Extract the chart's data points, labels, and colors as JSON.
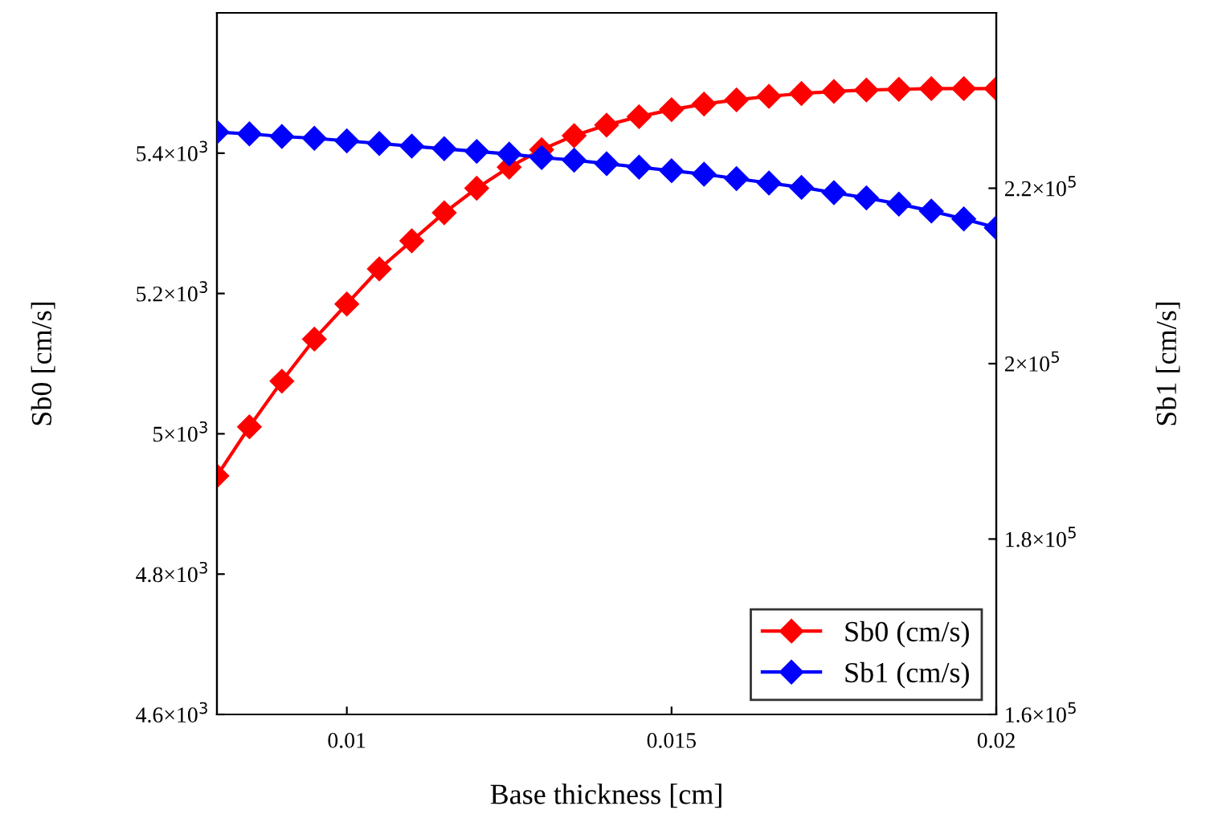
{
  "chart_data": {
    "type": "line",
    "xlabel": "Base thickness [cm]",
    "ylabel": "Sb0 [cm/s]",
    "y2label": "Sb1 [cm/s]",
    "x": [
      0.008,
      0.0085,
      0.009,
      0.0095,
      0.01,
      0.0105,
      0.011,
      0.0115,
      0.012,
      0.0125,
      0.013,
      0.0135,
      0.014,
      0.0145,
      0.015,
      0.0155,
      0.016,
      0.0165,
      0.017,
      0.0175,
      0.018,
      0.0185,
      0.019,
      0.0195,
      0.02
    ],
    "series": [
      {
        "name": "Sb0 (cm/s)",
        "color": "#ff0000",
        "values": [
          4940,
          5010,
          5075,
          5135,
          5185,
          5235,
          5275,
          5315,
          5350,
          5380,
          5405,
          5425,
          5440,
          5452,
          5462,
          5470,
          5476,
          5481,
          5485,
          5488,
          5490,
          5491,
          5492,
          5492,
          5492
        ]
      },
      {
        "name": "Sb1 (cm/s)",
        "color": "#0000ff",
        "axis": "y2",
        "values": [
          226400,
          226200,
          225900,
          225700,
          225400,
          225100,
          224800,
          224500,
          224200,
          223900,
          223500,
          223200,
          222800,
          222400,
          222000,
          221600,
          221100,
          220600,
          220100,
          219500,
          218900,
          218200,
          217400,
          216500,
          215500
        ]
      }
    ],
    "xlim": [
      0.008,
      0.02
    ],
    "xticks": [
      0.01,
      0.015,
      0.02
    ],
    "ylim": [
      4600,
      5600
    ],
    "yticks": [
      {
        "value": 4600,
        "label": "4.6×10$^{3}$"
      },
      {
        "value": 4800,
        "label": "4.8×10$^{3}$"
      },
      {
        "value": 5000,
        "label": "5×10$^{3}$"
      },
      {
        "value": 5200,
        "label": "5.2×10$^{3}$"
      },
      {
        "value": 5400,
        "label": "5.4×10$^{3}$"
      }
    ],
    "y2lim": [
      160000,
      240000
    ],
    "y2ticks": [
      {
        "value": 160000,
        "label": "1.6×10$^{5}$"
      },
      {
        "value": 180000,
        "label": "1.8×10$^{5}$"
      },
      {
        "value": 200000,
        "label": "2×10$^{5}$"
      },
      {
        "value": 220000,
        "label": "2.2×10$^{5}$"
      }
    ],
    "marker": "diamond",
    "line_style": "solid",
    "legend": "bottom right",
    "grid": false
  }
}
